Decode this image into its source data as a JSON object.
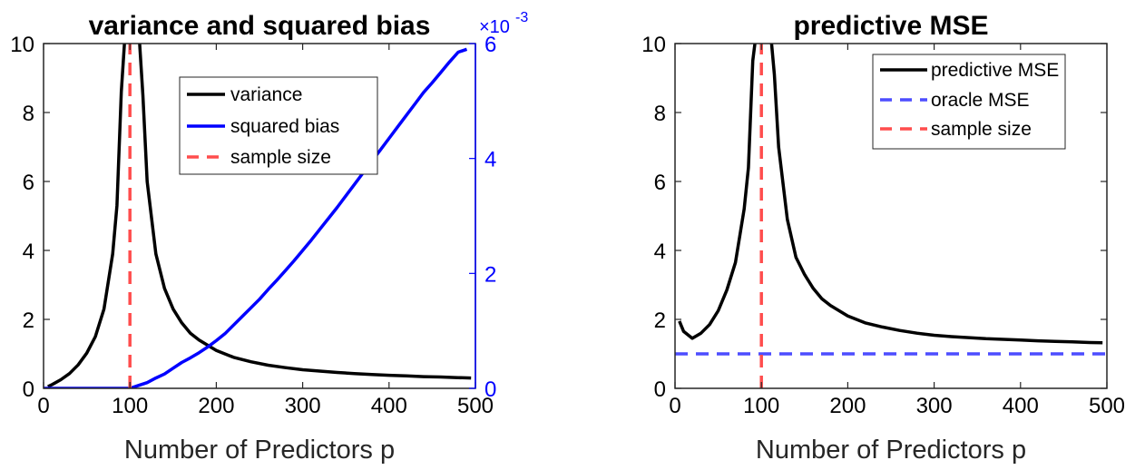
{
  "chart_data": [
    {
      "type": "line",
      "title": "variance and squared bias",
      "xlabel": "Number of Predictors p",
      "ylabel": "",
      "xlim": [
        0,
        500
      ],
      "ylim": [
        0,
        10
      ],
      "y2lim": [
        0,
        0.006
      ],
      "x_ticks": [
        "0",
        "100",
        "200",
        "300",
        "400",
        "500"
      ],
      "y_ticks": [
        "0",
        "2",
        "4",
        "6",
        "8",
        "10"
      ],
      "y2_ticks": [
        "0",
        "2",
        "4",
        "6"
      ],
      "y2_exponent_base": "×10",
      "y2_exponent_power": "-3",
      "legend_position": "top-right",
      "series": [
        {
          "name": "variance",
          "axis": "left",
          "color": "#000000",
          "style": "solid",
          "x": [
            5,
            10,
            20,
            30,
            40,
            50,
            60,
            70,
            80,
            85,
            90,
            95,
            110,
            115,
            120,
            130,
            140,
            150,
            160,
            170,
            180,
            200,
            220,
            240,
            260,
            280,
            300,
            320,
            340,
            360,
            380,
            400,
            420,
            440,
            460,
            480,
            495
          ],
          "y": [
            0.05,
            0.11,
            0.25,
            0.43,
            0.68,
            1.02,
            1.5,
            2.3,
            3.9,
            5.3,
            8.6,
            10.5,
            10.5,
            8.5,
            6.0,
            3.9,
            2.9,
            2.3,
            1.9,
            1.6,
            1.4,
            1.1,
            0.9,
            0.77,
            0.67,
            0.6,
            0.54,
            0.5,
            0.46,
            0.43,
            0.4,
            0.38,
            0.36,
            0.34,
            0.33,
            0.31,
            0.3
          ]
        },
        {
          "name": "squared bias",
          "axis": "right",
          "color": "#0000ff",
          "style": "solid",
          "x": [
            0,
            20,
            40,
            60,
            80,
            100,
            110,
            120,
            130,
            140,
            150,
            160,
            170,
            180,
            190,
            200,
            210,
            220,
            230,
            240,
            250,
            260,
            270,
            280,
            290,
            300,
            310,
            320,
            330,
            340,
            350,
            360,
            370,
            380,
            390,
            400,
            410,
            420,
            430,
            440,
            450,
            460,
            470,
            480,
            490
          ],
          "y": [
            0,
            0,
            0,
            0,
            0,
            0,
            5e-05,
            0.0001,
            0.00018,
            0.00025,
            0.00035,
            0.00045,
            0.00053,
            0.00062,
            0.00072,
            0.00083,
            0.00095,
            0.0011,
            0.00125,
            0.0014,
            0.00155,
            0.00172,
            0.00188,
            0.00205,
            0.00222,
            0.0024,
            0.00258,
            0.00277,
            0.00296,
            0.00315,
            0.00335,
            0.00355,
            0.00375,
            0.00395,
            0.00415,
            0.00435,
            0.00455,
            0.00475,
            0.00495,
            0.00515,
            0.00532,
            0.0055,
            0.00568,
            0.00585,
            0.0059
          ]
        },
        {
          "name": "sample size",
          "axis": "left",
          "color": "#ff4d4d",
          "style": "dashed",
          "x": [
            100,
            100
          ],
          "y": [
            0,
            10
          ]
        }
      ]
    },
    {
      "type": "line",
      "title": "predictive MSE",
      "xlabel": "Number of Predictors p",
      "ylabel": "",
      "xlim": [
        0,
        500
      ],
      "ylim": [
        0,
        10
      ],
      "x_ticks": [
        "0",
        "100",
        "200",
        "300",
        "400",
        "500"
      ],
      "y_ticks": [
        "0",
        "2",
        "4",
        "6",
        "8",
        "10"
      ],
      "legend_position": "top-right",
      "series": [
        {
          "name": "predictive MSE",
          "color": "#000000",
          "style": "solid",
          "x": [
            5,
            10,
            20,
            30,
            40,
            50,
            60,
            70,
            80,
            85,
            90,
            95,
            110,
            115,
            120,
            130,
            140,
            150,
            160,
            170,
            180,
            200,
            220,
            240,
            260,
            280,
            300,
            320,
            340,
            360,
            380,
            400,
            420,
            440,
            460,
            480,
            495
          ],
          "y": [
            1.95,
            1.65,
            1.45,
            1.6,
            1.85,
            2.25,
            2.85,
            3.65,
            5.2,
            6.4,
            9.5,
            10.5,
            10.5,
            9.1,
            7.0,
            4.9,
            3.8,
            3.3,
            2.9,
            2.6,
            2.4,
            2.1,
            1.9,
            1.78,
            1.68,
            1.6,
            1.54,
            1.5,
            1.47,
            1.44,
            1.42,
            1.4,
            1.38,
            1.36,
            1.35,
            1.33,
            1.32
          ]
        },
        {
          "name": "oracle MSE",
          "color": "#4d4dff",
          "style": "dashed",
          "x": [
            0,
            500
          ],
          "y": [
            1,
            1
          ]
        },
        {
          "name": "sample size",
          "color": "#ff4d4d",
          "style": "dashed",
          "x": [
            100,
            100
          ],
          "y": [
            0,
            10
          ]
        }
      ]
    }
  ]
}
